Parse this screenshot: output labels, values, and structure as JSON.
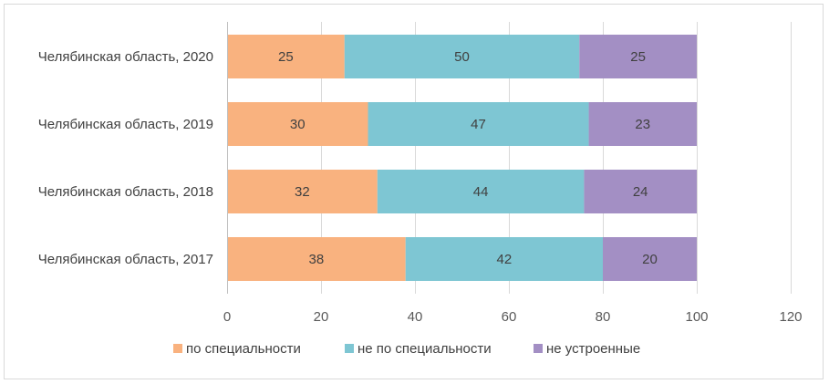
{
  "chart_data": {
    "type": "bar",
    "orientation": "horizontal",
    "stacked": true,
    "categories": [
      "Челябинская область, 2020",
      "Челябинская область, 2019",
      "Челябинская область, 2018",
      "Челябинская область, 2017"
    ],
    "series": [
      {
        "name": "по специальности",
        "color": "#F9B27F",
        "values": [
          25,
          30,
          32,
          38
        ]
      },
      {
        "name": "не по специальности",
        "color": "#7EC6D3",
        "values": [
          50,
          47,
          44,
          42
        ]
      },
      {
        "name": "не устроенные",
        "color": "#A38FC4",
        "values": [
          25,
          23,
          24,
          20
        ]
      }
    ],
    "xlim": [
      0,
      120
    ],
    "xticks": [
      "0",
      "20",
      "40",
      "60",
      "80",
      "100",
      "120"
    ],
    "grid": true,
    "legend_position": "bottom",
    "title": "",
    "xlabel": "",
    "ylabel": ""
  }
}
